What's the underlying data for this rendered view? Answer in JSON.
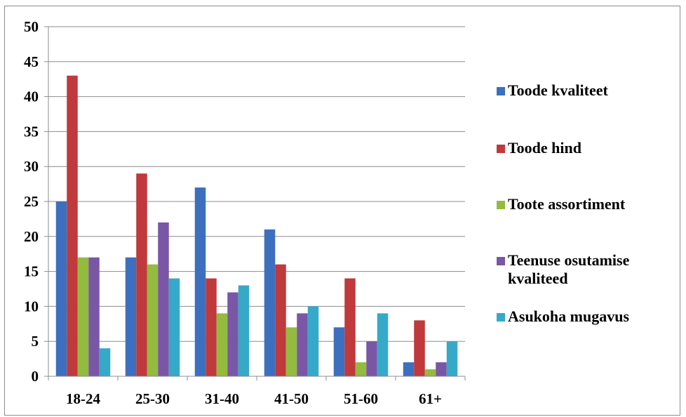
{
  "chart_data": {
    "type": "bar",
    "categories": [
      "18-24",
      "25-30",
      "31-40",
      "41-50",
      "51-60",
      "61+"
    ],
    "series": [
      {
        "name": "Toode kvaliteet",
        "color": "#3d6fbf",
        "values": [
          25,
          17,
          27,
          21,
          7,
          2
        ]
      },
      {
        "name": "Toode hind",
        "color": "#c0393b",
        "values": [
          43,
          29,
          14,
          16,
          14,
          8
        ]
      },
      {
        "name": "Toote assortiment",
        "color": "#93bb3e",
        "values": [
          17,
          16,
          9,
          7,
          2,
          1
        ]
      },
      {
        "name": "Teenuse osutamise kvaliteed",
        "color": "#7a56a6",
        "values": [
          17,
          22,
          12,
          9,
          5,
          2
        ]
      },
      {
        "name": "Asukoha mugavus",
        "color": "#36a9c9",
        "values": [
          4,
          14,
          13,
          10,
          9,
          5
        ]
      }
    ],
    "ylim": [
      0,
      50
    ],
    "yticks": [
      "0",
      "5",
      "10",
      "15",
      "20",
      "25",
      "30",
      "35",
      "40",
      "45",
      "50"
    ],
    "grid": true,
    "legend_position": "right"
  }
}
